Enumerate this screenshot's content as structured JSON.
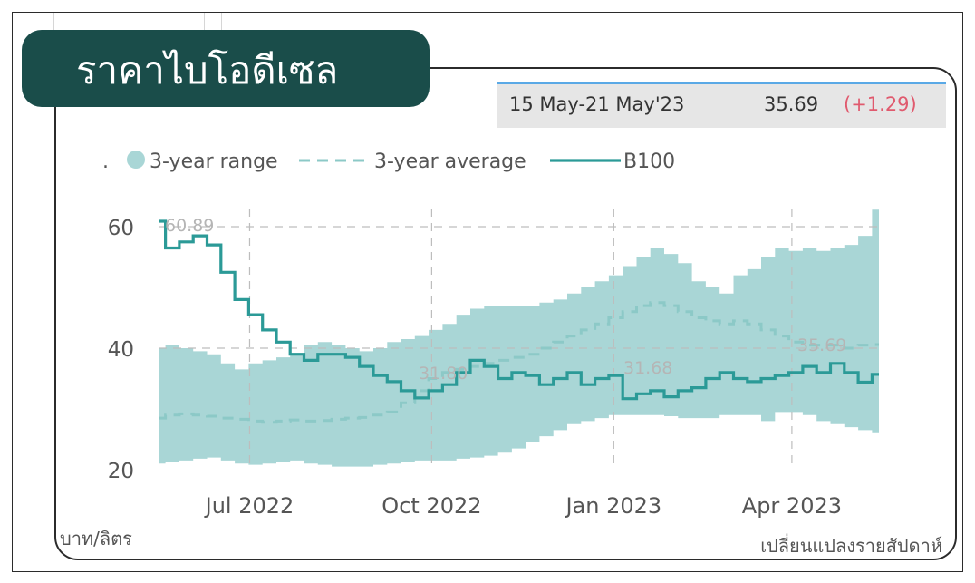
{
  "title": "ราคาไบโอดีเซล",
  "info": {
    "period": "15 May-21 May'23",
    "value": "35.69",
    "change": "(+1.29)"
  },
  "unit_label": "บาท/ลิตร",
  "frequency_label": "เปลี่ยนแปลงรายสัปดาห์",
  "colors": {
    "title_bg": "#1a4d4a",
    "range_fill": "#a9d6d6",
    "line": "#2b9a97",
    "average": "#8cc9c7",
    "change": "#e05a6e"
  },
  "chart_data": {
    "type": "line",
    "title": "",
    "xlabel": "",
    "ylabel": "",
    "legend": {
      "position": "top-left",
      "marker": ".",
      "entries": [
        "3-year range",
        "3-year average",
        "B100"
      ]
    },
    "x_ticks": [
      "Jul 2022",
      "Oct 2022",
      "Jan 2023",
      "Apr 2023"
    ],
    "y_ticks": [
      20,
      40,
      60
    ],
    "ylim": [
      20,
      61
    ],
    "grid": true,
    "annotations": [
      "60.89",
      "31.80",
      "31.68",
      "35.69"
    ],
    "x": [
      "2022-05-16",
      "2022-05-23",
      "2022-05-30",
      "2022-06-06",
      "2022-06-13",
      "2022-06-20",
      "2022-06-27",
      "2022-07-04",
      "2022-07-11",
      "2022-07-18",
      "2022-07-25",
      "2022-08-01",
      "2022-08-08",
      "2022-08-15",
      "2022-08-22",
      "2022-08-29",
      "2022-09-05",
      "2022-09-12",
      "2022-09-19",
      "2022-09-26",
      "2022-10-03",
      "2022-10-10",
      "2022-10-17",
      "2022-10-24",
      "2022-10-31",
      "2022-11-07",
      "2022-11-14",
      "2022-11-21",
      "2022-11-28",
      "2022-12-05",
      "2022-12-12",
      "2022-12-19",
      "2022-12-26",
      "2023-01-02",
      "2023-01-09",
      "2023-01-16",
      "2023-01-23",
      "2023-01-30",
      "2023-02-06",
      "2023-02-13",
      "2023-02-20",
      "2023-02-27",
      "2023-03-06",
      "2023-03-13",
      "2023-03-20",
      "2023-03-27",
      "2023-04-03",
      "2023-04-10",
      "2023-04-17",
      "2023-04-24",
      "2023-05-01",
      "2023-05-08",
      "2023-05-15"
    ],
    "series": [
      {
        "name": "B100",
        "values": [
          60.89,
          56.5,
          57.5,
          58.5,
          57.0,
          52.5,
          48.0,
          45.5,
          43.0,
          41.0,
          39.0,
          38.0,
          39.0,
          39.0,
          38.5,
          37.0,
          35.5,
          34.5,
          33.0,
          31.8,
          33.0,
          34.0,
          36.0,
          38.0,
          37.0,
          35.0,
          36.0,
          35.5,
          34.0,
          35.0,
          36.0,
          34.0,
          35.0,
          35.5,
          31.68,
          32.5,
          33.0,
          32.0,
          33.0,
          33.5,
          35.0,
          36.0,
          35.0,
          34.5,
          35.0,
          35.5,
          36.0,
          37.0,
          36.0,
          37.5,
          36.0,
          34.4,
          35.69
        ]
      },
      {
        "name": "3-year average",
        "values": [
          28.5,
          29.0,
          29.2,
          29.0,
          28.8,
          28.5,
          28.3,
          28.0,
          27.8,
          28.0,
          28.2,
          28.0,
          28.1,
          28.3,
          28.5,
          28.6,
          29.0,
          29.5,
          31.0,
          33.0,
          35.0,
          36.0,
          36.5,
          37.0,
          37.5,
          38.0,
          38.5,
          39.0,
          40.0,
          41.0,
          42.0,
          43.0,
          44.0,
          45.0,
          46.0,
          47.0,
          47.5,
          47.0,
          46.0,
          45.0,
          44.5,
          44.0,
          44.5,
          44.0,
          43.0,
          42.0,
          41.0,
          40.5,
          40.5,
          40.5,
          40.0,
          40.5,
          40.6
        ]
      },
      {
        "name": "3-year range low",
        "values": [
          21.0,
          21.2,
          21.5,
          21.8,
          22.0,
          21.5,
          21.0,
          20.8,
          21.0,
          21.3,
          21.5,
          21.0,
          20.8,
          20.5,
          20.5,
          20.5,
          20.8,
          21.0,
          21.2,
          21.5,
          21.5,
          21.5,
          21.8,
          22.0,
          22.3,
          22.8,
          23.5,
          24.5,
          25.5,
          26.5,
          27.5,
          28.0,
          28.5,
          29.0,
          29.0,
          29.0,
          29.0,
          28.8,
          28.5,
          28.5,
          28.5,
          29.0,
          29.0,
          29.0,
          28.0,
          29.5,
          29.5,
          29.0,
          28.0,
          27.5,
          27.0,
          26.5,
          26.0
        ]
      },
      {
        "name": "3-year range high",
        "values": [
          40.0,
          40.5,
          40.0,
          39.5,
          39.0,
          37.5,
          36.5,
          37.5,
          38.0,
          38.5,
          39.0,
          40.5,
          41.0,
          40.5,
          40.0,
          39.5,
          40.0,
          41.0,
          41.5,
          42.0,
          43.0,
          44.0,
          45.5,
          46.5,
          47.0,
          47.0,
          47.0,
          47.0,
          47.5,
          48.0,
          49.0,
          50.0,
          51.0,
          52.0,
          53.5,
          55.0,
          56.5,
          55.5,
          54.0,
          51.0,
          50.0,
          49.0,
          52.0,
          53.0,
          55.0,
          56.5,
          56.0,
          56.5,
          56.0,
          56.5,
          57.0,
          58.5,
          62.8
        ]
      }
    ]
  }
}
